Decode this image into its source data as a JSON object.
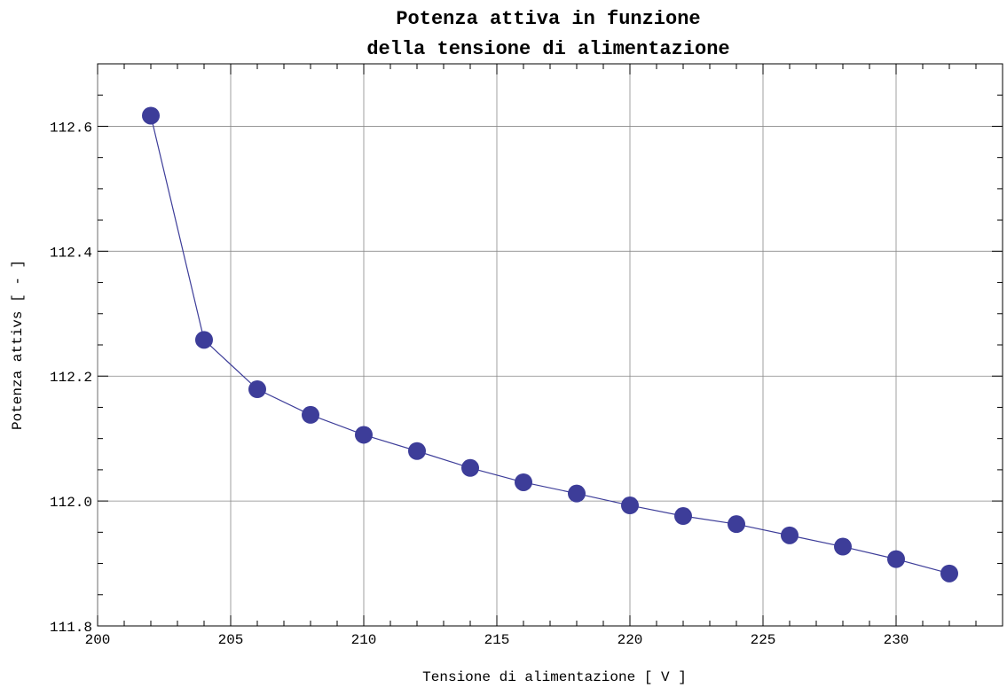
{
  "chart_data": {
    "type": "line",
    "title_line1": "Potenza attiva in funzione",
    "title_line2": "della tensione di alimentazione",
    "xlabel": "Tensione di alimentazione [ V ]",
    "ylabel": "Potenza attivs [ - ]",
    "xlim": [
      200,
      234
    ],
    "ylim": [
      111.8,
      112.7
    ],
    "x_ticks": [
      200,
      205,
      210,
      215,
      220,
      225,
      230
    ],
    "x_tick_labels": [
      "200",
      "205",
      "210",
      "215",
      "220",
      "225",
      "230"
    ],
    "y_ticks": [
      111.8,
      112.0,
      112.2,
      112.4,
      112.6
    ],
    "y_tick_labels": [
      "111.8",
      "112.0",
      "112.2",
      "112.4",
      "112.6"
    ],
    "grid": true,
    "series": [
      {
        "x": [
          202,
          204,
          206,
          208,
          210,
          212,
          214,
          216,
          218,
          220,
          222,
          224,
          226,
          228,
          230,
          232
        ],
        "y": [
          112.617,
          112.258,
          112.179,
          112.138,
          112.106,
          112.08,
          112.053,
          112.03,
          112.012,
          111.993,
          111.976,
          111.963,
          111.945,
          111.927,
          111.907,
          111.884
        ],
        "color": "#3d3d99"
      }
    ]
  }
}
